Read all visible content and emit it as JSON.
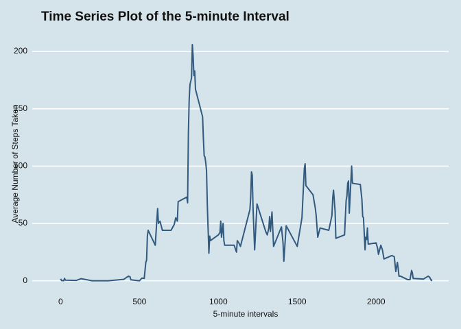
{
  "chart_data": {
    "type": "line",
    "title": "Time Series Plot of the 5-minute Interval",
    "x_label": "5-minute intervals",
    "y_label": "Average Number of Steps Taken",
    "x": [
      0,
      5,
      10,
      15,
      20,
      25,
      30,
      100,
      130,
      200,
      300,
      400,
      430,
      440,
      445,
      500,
      515,
      530,
      540,
      545,
      550,
      555,
      600,
      610,
      615,
      620,
      630,
      645,
      700,
      720,
      730,
      740,
      745,
      800,
      805,
      810,
      815,
      820,
      830,
      835,
      840,
      845,
      850,
      855,
      900,
      905,
      910,
      915,
      920,
      925,
      930,
      935,
      940,
      945,
      950,
      1000,
      1010,
      1015,
      1020,
      1030,
      1035,
      1040,
      1100,
      1115,
      1120,
      1130,
      1140,
      1200,
      1205,
      1210,
      1215,
      1220,
      1230,
      1245,
      1300,
      1310,
      1320,
      1325,
      1330,
      1340,
      1350,
      1400,
      1410,
      1415,
      1430,
      1500,
      1530,
      1545,
      1550,
      1555,
      1600,
      1615,
      1620,
      1630,
      1645,
      1700,
      1720,
      1725,
      1730,
      1740,
      1745,
      1800,
      1810,
      1815,
      1820,
      1825,
      1830,
      1845,
      1850,
      1900,
      1910,
      1915,
      1920,
      1930,
      1935,
      1940,
      1945,
      1950,
      2000,
      2010,
      2015,
      2030,
      2040,
      2050,
      2100,
      2115,
      2125,
      2130,
      2135,
      2140,
      2145,
      2155,
      2200,
      2215,
      2225,
      2230,
      2235,
      2300,
      2330,
      2340,
      2350,
      2355
    ],
    "values": [
      1.7,
      0.3,
      0.1,
      0.2,
      0.1,
      2.1,
      0.5,
      0.3,
      1.8,
      0,
      0,
      1.2,
      4,
      3.5,
      0.8,
      0,
      2.3,
      2.1,
      16,
      18,
      39,
      44,
      31,
      53,
      63,
      50,
      52,
      44,
      44,
      49,
      55,
      52,
      69,
      73,
      68,
      129,
      158,
      171,
      177,
      206,
      196,
      179,
      183,
      167,
      143,
      124,
      109,
      108,
      103,
      96,
      66,
      45,
      24,
      39,
      35,
      40,
      42,
      52,
      38,
      50,
      35,
      31,
      31,
      25,
      35,
      33,
      30,
      62,
      73,
      95,
      92,
      63,
      27,
      67,
      43,
      40,
      46,
      56,
      43,
      60,
      30,
      47,
      33,
      17,
      48,
      30,
      55,
      98,
      102,
      83,
      75,
      63,
      57,
      38,
      46,
      44,
      57,
      72,
      79,
      61,
      37,
      40,
      70,
      74,
      85,
      87,
      59,
      100,
      85,
      84,
      71,
      56,
      55,
      27,
      38,
      36,
      46,
      32,
      33,
      28,
      23,
      31,
      27,
      19,
      22,
      21,
      8,
      12,
      16,
      11,
      4,
      4,
      1,
      1,
      9,
      7,
      2,
      1.5,
      4,
      3,
      0.2,
      1
    ],
    "color": "#32597e",
    "xlim": [
      -180,
      2460
    ],
    "xticks": [
      0,
      500,
      1000,
      1500,
      2000
    ],
    "ylim": [
      -8,
      212
    ],
    "yticks": [
      0,
      50,
      100,
      150,
      200
    ],
    "grid": true
  }
}
